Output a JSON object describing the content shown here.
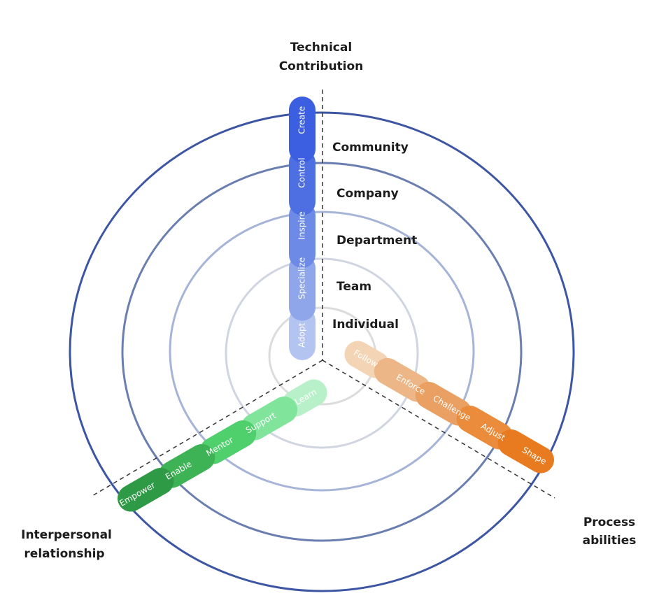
{
  "axes": [
    {
      "title_lines": [
        "Technical",
        "Contribution"
      ],
      "steps": [
        "Adopt",
        "Specialize",
        "Inspire",
        "Control",
        "Create"
      ],
      "colors": [
        "#b3c4f0",
        "#8fa7ea",
        "#6d8be6",
        "#4d6fe2",
        "#3b5fe0"
      ]
    },
    {
      "title_lines": [
        "Interpersonal",
        "relationship"
      ],
      "steps": [
        "Learn",
        "Support",
        "Mentor",
        "Enable",
        "Empower"
      ],
      "colors": [
        "#b8f0c9",
        "#80e49b",
        "#4fd06c",
        "#3db355",
        "#2f9a45"
      ]
    },
    {
      "title_lines": [
        "Process",
        "abilities"
      ],
      "steps": [
        "Follow",
        "Enforce",
        "Challenge",
        "Adjust",
        "Shape"
      ],
      "colors": [
        "#f3d4b4",
        "#ecb686",
        "#e9a062",
        "#ea8c3b",
        "#e87a20"
      ]
    }
  ],
  "rings": [
    "Individual",
    "Team",
    "Department",
    "Company",
    "Community"
  ]
}
